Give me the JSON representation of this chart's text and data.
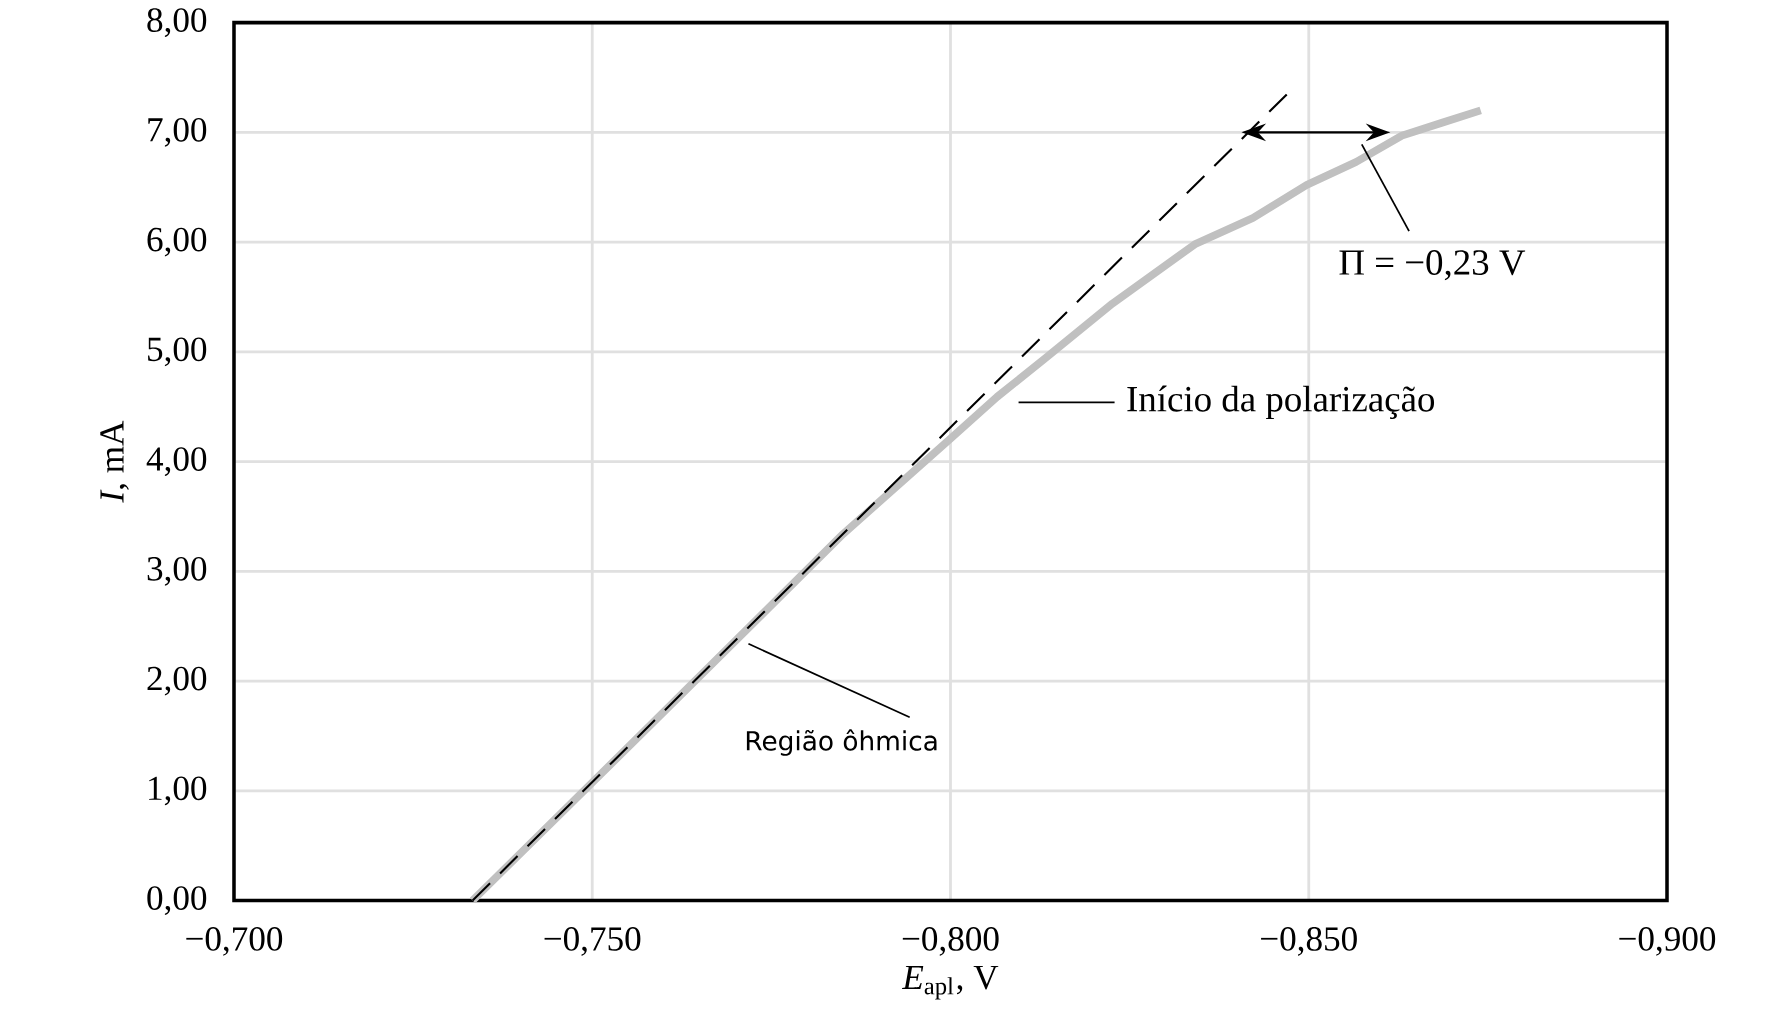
{
  "chart_data": {
    "type": "line",
    "xlabel": "*E*$_{apl}$, V",
    "ylabel": "*I*, mA",
    "xlim": [
      -0.7,
      -0.9
    ],
    "xticks": [
      {
        "value": -0.7,
        "label": "−0,700"
      },
      {
        "value": -0.75,
        "label": "−0,750"
      },
      {
        "value": -0.8,
        "label": "−0,800"
      },
      {
        "value": -0.85,
        "label": "−0,850"
      },
      {
        "value": -0.9,
        "label": "−0,900"
      }
    ],
    "ylim": [
      0,
      8
    ],
    "yticks": [
      {
        "value": 0,
        "label": "0,00"
      },
      {
        "value": 1,
        "label": "1,00"
      },
      {
        "value": 2,
        "label": "2,00"
      },
      {
        "value": 3,
        "label": "3,00"
      },
      {
        "value": 4,
        "label": "4,00"
      },
      {
        "value": 5,
        "label": "5,00"
      },
      {
        "value": 6,
        "label": "6,00"
      },
      {
        "value": 7,
        "label": "7,00"
      },
      {
        "value": 8,
        "label": "8,00"
      }
    ],
    "grid": true,
    "series": [
      {
        "color": "#c0c0c0",
        "line_style": "solid",
        "x": [
          -0.7333,
          -0.76,
          -0.785,
          -0.8,
          -0.8065,
          -0.8134,
          -0.8226,
          -0.8341,
          -0.8422,
          -0.8497,
          -0.8566,
          -0.863,
          -0.8687,
          -0.874
        ],
        "values": [
          0,
          1.72,
          3.34,
          4.21,
          4.59,
          4.95,
          5.44,
          5.98,
          6.22,
          6.52,
          6.73,
          6.97,
          7.09,
          7.2
        ]
      },
      {
        "color": "#000000",
        "line_style": "dashed",
        "x": [
          -0.7333,
          -0.8473
        ],
        "values": [
          0,
          7.37
        ]
      }
    ],
    "annotations": [
      "Π = −0,23 V",
      "Início da polarização",
      "Região ôhmica"
    ]
  }
}
